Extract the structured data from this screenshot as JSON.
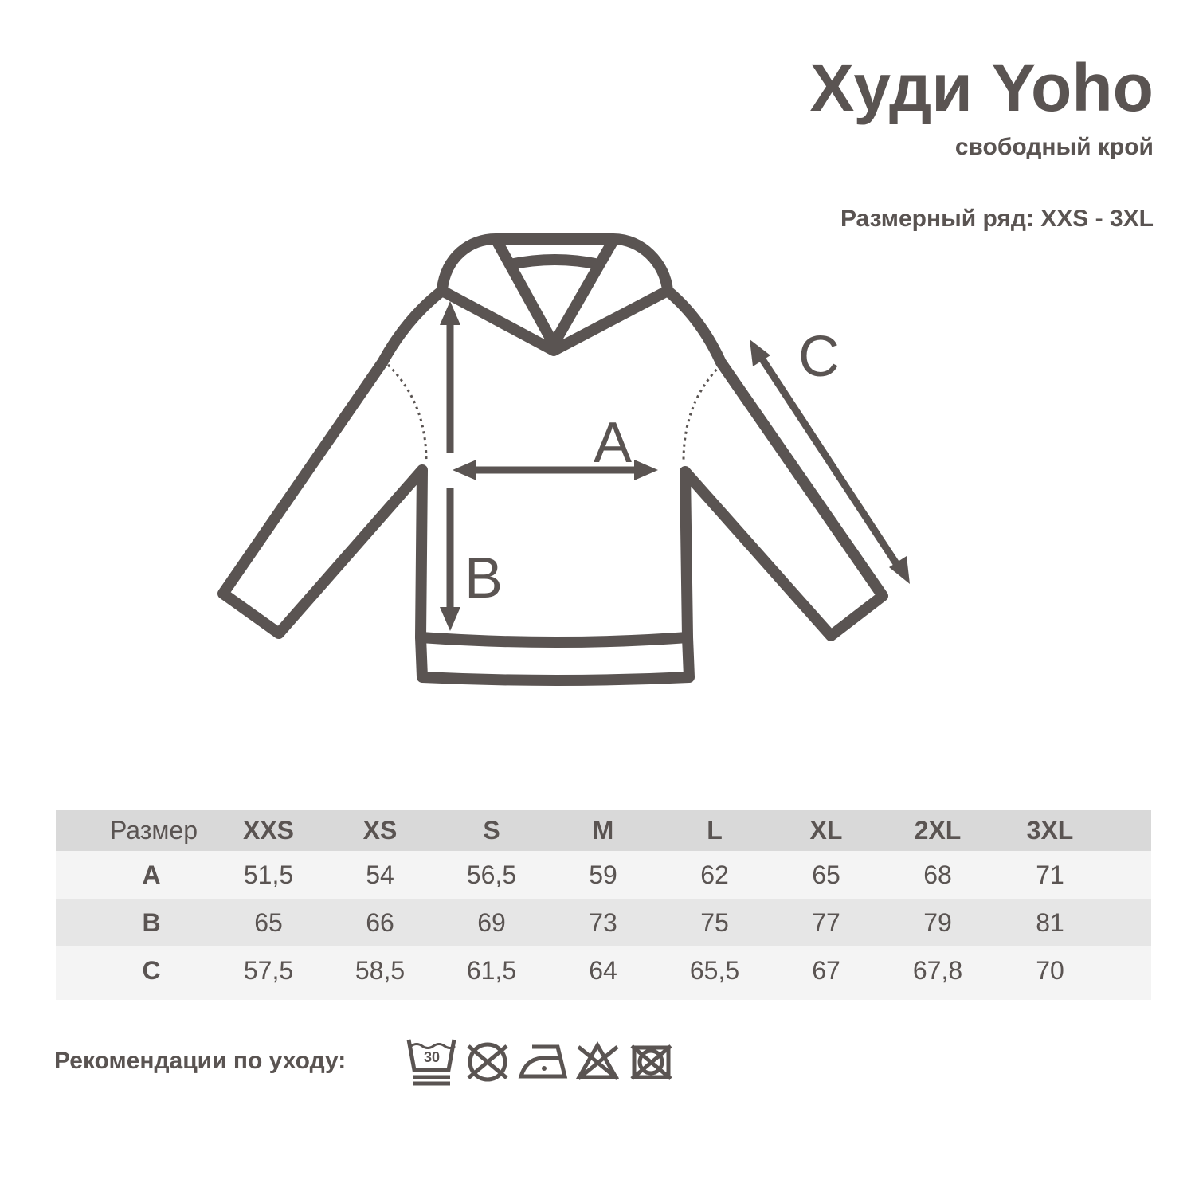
{
  "title": "Худи Yoho",
  "subtitle": "свободный крой",
  "size_range": "Размерный ряд: XXS - 3XL",
  "diagram": {
    "labels": {
      "a": "A",
      "b": "B",
      "c": "C"
    }
  },
  "table": {
    "header": [
      "Размер",
      "XXS",
      "XS",
      "S",
      "M",
      "L",
      "XL",
      "2XL",
      "3XL"
    ],
    "rows": [
      [
        "A",
        "51,5",
        "54",
        "56,5",
        "59",
        "62",
        "65",
        "68",
        "71"
      ],
      [
        "B",
        "65",
        "66",
        "69",
        "73",
        "75",
        "77",
        "79",
        "81"
      ],
      [
        "C",
        "57,5",
        "58,5",
        "61,5",
        "64",
        "65,5",
        "67",
        "67,8",
        "70"
      ]
    ]
  },
  "care": {
    "label": "Рекомендации по уходу:",
    "wash_temp": "30",
    "icons": [
      "wash-30-gentle-icon",
      "do-not-tumble-dry-icon",
      "iron-low-icon",
      "do-not-bleach-icon",
      "do-not-dry-icon"
    ]
  },
  "colors": {
    "ink": "#5a5452",
    "header_bg": "#d9d9d9",
    "row_alt": "#e6e6e6",
    "row_light": "#f4f4f4"
  }
}
